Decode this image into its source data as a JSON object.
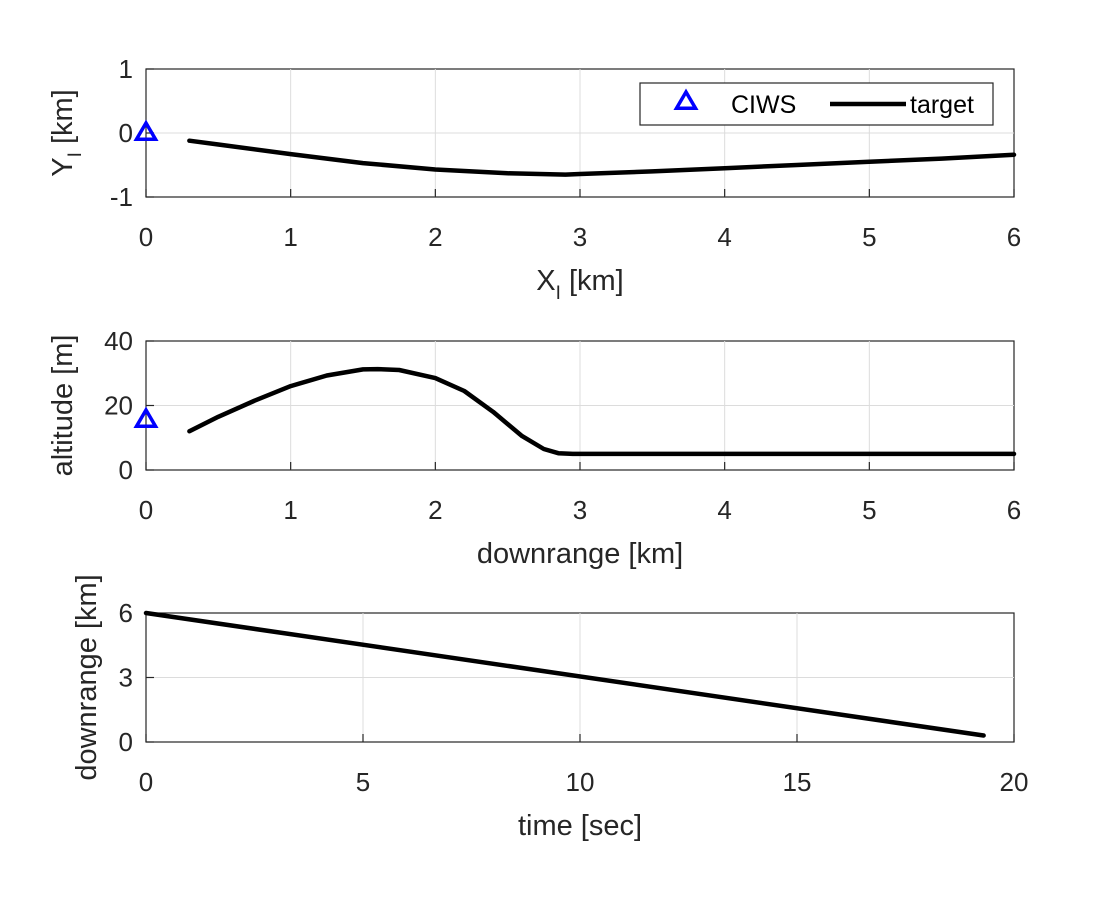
{
  "colors": {
    "target": "#000000",
    "ciws": "#0000ff",
    "axis": "#262626",
    "grid": "#dcdcdc"
  },
  "legend": {
    "placement": "top-right",
    "entries": [
      "CIWS",
      "target"
    ]
  },
  "chart_data": [
    {
      "type": "line",
      "xlabel_main": "X",
      "xlabel_sub": "I",
      "xlabel_unit": " [km]",
      "ylabel_main": "Y",
      "ylabel_sub": "I",
      "ylabel_unit": " [km]",
      "xlim": [
        0,
        6
      ],
      "ylim": [
        -1,
        1
      ],
      "xticks": [
        0,
        1,
        2,
        3,
        4,
        5,
        6
      ],
      "yticks": [
        -1,
        0,
        1
      ],
      "grid": true,
      "legend": "top-right",
      "series": [
        {
          "name": "target",
          "x": [
            0.3,
            0.5,
            1.0,
            1.5,
            2.0,
            2.5,
            2.9,
            3.0,
            3.5,
            4.0,
            4.5,
            5.0,
            5.5,
            6.0
          ],
          "y": [
            -0.12,
            -0.18,
            -0.33,
            -0.47,
            -0.57,
            -0.63,
            -0.65,
            -0.64,
            -0.6,
            -0.55,
            -0.5,
            -0.45,
            -0.4,
            -0.34
          ]
        },
        {
          "name": "CIWS",
          "x": [
            0
          ],
          "y": [
            0
          ]
        }
      ]
    },
    {
      "type": "line",
      "xlabel": "downrange [km]",
      "ylabel": "altitude [m]",
      "xlim": [
        0,
        6
      ],
      "ylim": [
        0,
        40
      ],
      "xticks": [
        0,
        1,
        2,
        3,
        4,
        5,
        6
      ],
      "yticks": [
        0,
        20,
        40
      ],
      "grid": true,
      "series": [
        {
          "name": "target",
          "x": [
            0.3,
            0.5,
            0.75,
            1.0,
            1.25,
            1.5,
            1.6,
            1.75,
            2.0,
            2.2,
            2.4,
            2.6,
            2.75,
            2.85,
            2.95,
            3.2,
            4.0,
            5.0,
            6.0
          ],
          "y": [
            12,
            16.5,
            21.5,
            26,
            29.3,
            31.2,
            31.3,
            31,
            28.5,
            24.5,
            18,
            10.5,
            6.5,
            5.2,
            5,
            5,
            5,
            5,
            5
          ]
        },
        {
          "name": "CIWS",
          "x": [
            0
          ],
          "y": [
            15.5
          ]
        }
      ]
    },
    {
      "type": "line",
      "xlabel": "time [sec]",
      "ylabel": "downrange [km]",
      "xlim": [
        0,
        20
      ],
      "ylim": [
        0,
        6
      ],
      "xticks": [
        0,
        5,
        10,
        15,
        20
      ],
      "yticks": [
        0,
        3,
        6
      ],
      "grid": true,
      "series": [
        {
          "name": "target",
          "x": [
            0,
            19.3
          ],
          "y": [
            6,
            0.3
          ]
        }
      ]
    }
  ]
}
